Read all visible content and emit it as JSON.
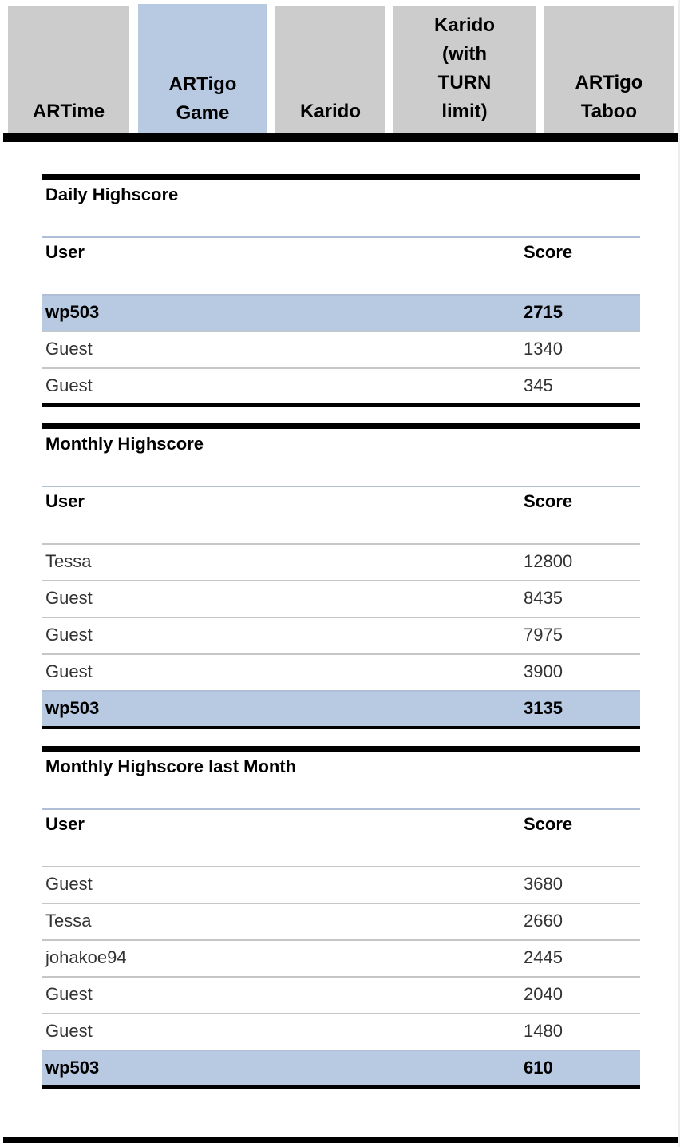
{
  "tabs": [
    {
      "label_lines": [
        "ARTime"
      ],
      "active": false
    },
    {
      "label_lines": [
        "ARTigo",
        "Game"
      ],
      "active": true
    },
    {
      "label_lines": [
        "Karido"
      ],
      "active": false
    },
    {
      "label_lines": [
        "Karido",
        "(with",
        "TURN",
        "limit)"
      ],
      "active": false
    },
    {
      "label_lines": [
        "ARTigo",
        "Taboo"
      ],
      "active": false
    }
  ],
  "colors": {
    "highlight": "#b8c9e2",
    "tab_inactive": "#cccccc"
  },
  "tables": [
    {
      "title": "Daily Highscore",
      "headers": {
        "user": "User",
        "score": "Score"
      },
      "rows": [
        {
          "user": "wp503",
          "score": "2715",
          "highlight": true
        },
        {
          "user": "Guest",
          "score": "1340",
          "highlight": false
        },
        {
          "user": "Guest",
          "score": "345",
          "highlight": false
        }
      ]
    },
    {
      "title": "Monthly Highscore",
      "headers": {
        "user": "User",
        "score": "Score"
      },
      "rows": [
        {
          "user": "Tessa",
          "score": "12800",
          "highlight": false
        },
        {
          "user": "Guest",
          "score": "8435",
          "highlight": false
        },
        {
          "user": "Guest",
          "score": "7975",
          "highlight": false
        },
        {
          "user": "Guest",
          "score": "3900",
          "highlight": false
        },
        {
          "user": "wp503",
          "score": "3135",
          "highlight": true
        }
      ]
    },
    {
      "title": "Monthly Highscore last Month",
      "headers": {
        "user": "User",
        "score": "Score"
      },
      "rows": [
        {
          "user": "Guest",
          "score": "3680",
          "highlight": false
        },
        {
          "user": "Tessa",
          "score": "2660",
          "highlight": false
        },
        {
          "user": "johakoe94",
          "score": "2445",
          "highlight": false
        },
        {
          "user": "Guest",
          "score": "2040",
          "highlight": false
        },
        {
          "user": "Guest",
          "score": "1480",
          "highlight": false
        },
        {
          "user": "wp503",
          "score": "610",
          "highlight": true
        }
      ]
    }
  ]
}
